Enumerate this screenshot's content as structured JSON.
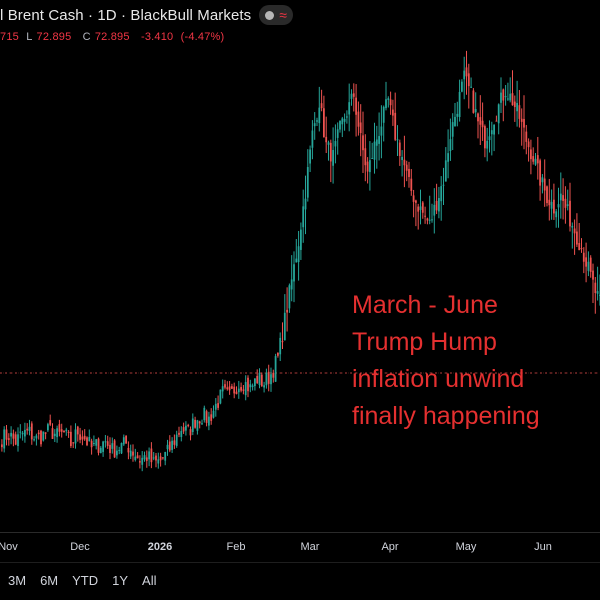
{
  "header": {
    "title": "l Brent Cash · 1D · BlackBull Markets",
    "ohlc": {
      "open_tail": "715",
      "low_label": "L",
      "low_value": "72.895",
      "close_label": "C",
      "close_value": "72.895",
      "change": "-3.410",
      "change_pct": "(-4.47%)"
    },
    "icons": [
      "circle-icon",
      "wave-icon"
    ]
  },
  "annotation": {
    "lines": [
      "March - June",
      "Trump Hump",
      "inflation unwind",
      "finally happening"
    ]
  },
  "x_axis": {
    "labels": [
      "Nov",
      "Dec",
      "2026",
      "Feb",
      "Mar",
      "Apr",
      "May",
      "Jun"
    ]
  },
  "range_buttons": [
    "3M",
    "6M",
    "YTD",
    "1Y",
    "All"
  ],
  "colors": {
    "up": "#26a69a",
    "down": "#ef5350",
    "annotation": "#e53030",
    "price_line": "#ef5350",
    "background": "#000000"
  },
  "chart_data": {
    "type": "candlestick",
    "x_labels": [
      "Nov",
      "Dec",
      "2026",
      "Feb",
      "Mar",
      "Apr",
      "May",
      "Jun"
    ],
    "close_path": [
      [
        0,
        61.5
      ],
      [
        3,
        61.8
      ],
      [
        6,
        61.2
      ],
      [
        9,
        61.9
      ],
      [
        12,
        62.0
      ],
      [
        15,
        61.4
      ],
      [
        18,
        61.8
      ],
      [
        21,
        62.2
      ],
      [
        24,
        61.7
      ],
      [
        27,
        61.9
      ],
      [
        30,
        61.0
      ],
      [
        33,
        62.1
      ],
      [
        36,
        61.5
      ],
      [
        39,
        60.6
      ],
      [
        42,
        60.9
      ],
      [
        45,
        61.2
      ],
      [
        48,
        60.4
      ],
      [
        51,
        60.7
      ],
      [
        54,
        61.0
      ],
      [
        57,
        60.3
      ],
      [
        60,
        59.6
      ],
      [
        63,
        59.9
      ],
      [
        66,
        59.2
      ],
      [
        69,
        59.5
      ],
      [
        72,
        60.2
      ],
      [
        75,
        61.3
      ],
      [
        78,
        62.4
      ],
      [
        81,
        62.0
      ],
      [
        84,
        63.1
      ],
      [
        87,
        63.5
      ],
      [
        90,
        63.2
      ],
      [
        93,
        64.4
      ],
      [
        96,
        65.5
      ],
      [
        99,
        65.1
      ],
      [
        102,
        66.2
      ],
      [
        105,
        66.5
      ],
      [
        108,
        65.9
      ],
      [
        111,
        66.8
      ],
      [
        114,
        66.4
      ],
      [
        117,
        67.2
      ],
      [
        120,
        68.6
      ],
      [
        123,
        72.0
      ],
      [
        126,
        75.5
      ],
      [
        129,
        79.0
      ],
      [
        132,
        83.5
      ],
      [
        135,
        88.5
      ],
      [
        138,
        91.5
      ],
      [
        141,
        87.5
      ],
      [
        144,
        86.5
      ],
      [
        147,
        89.0
      ],
      [
        150,
        90.5
      ],
      [
        153,
        92.0
      ],
      [
        156,
        88.0
      ],
      [
        159,
        85.0
      ],
      [
        162,
        87.5
      ],
      [
        165,
        89.5
      ],
      [
        168,
        91.5
      ],
      [
        171,
        88.5
      ],
      [
        174,
        86.5
      ],
      [
        177,
        84.0
      ],
      [
        180,
        82.5
      ],
      [
        183,
        81.5
      ],
      [
        186,
        80.5
      ],
      [
        189,
        82.5
      ],
      [
        192,
        84.5
      ],
      [
        195,
        88.5
      ],
      [
        198,
        91.0
      ],
      [
        201,
        93.5
      ],
      [
        204,
        92.0
      ],
      [
        207,
        89.5
      ],
      [
        210,
        88.0
      ],
      [
        213,
        89.5
      ],
      [
        216,
        91.0
      ],
      [
        219,
        92.5
      ],
      [
        222,
        91.5
      ],
      [
        225,
        90.0
      ],
      [
        228,
        88.0
      ],
      [
        231,
        86.5
      ],
      [
        234,
        84.5
      ],
      [
        237,
        83.0
      ],
      [
        240,
        82.0
      ],
      [
        243,
        83.0
      ],
      [
        246,
        81.5
      ],
      [
        249,
        80.0
      ],
      [
        252,
        78.5
      ],
      [
        255,
        76.5
      ],
      [
        258,
        74.5
      ],
      [
        261,
        73.0
      ]
    ],
    "overlay_price_line": "dotted red horizontal at approximately 64.5",
    "grid": false,
    "legend": "none"
  }
}
